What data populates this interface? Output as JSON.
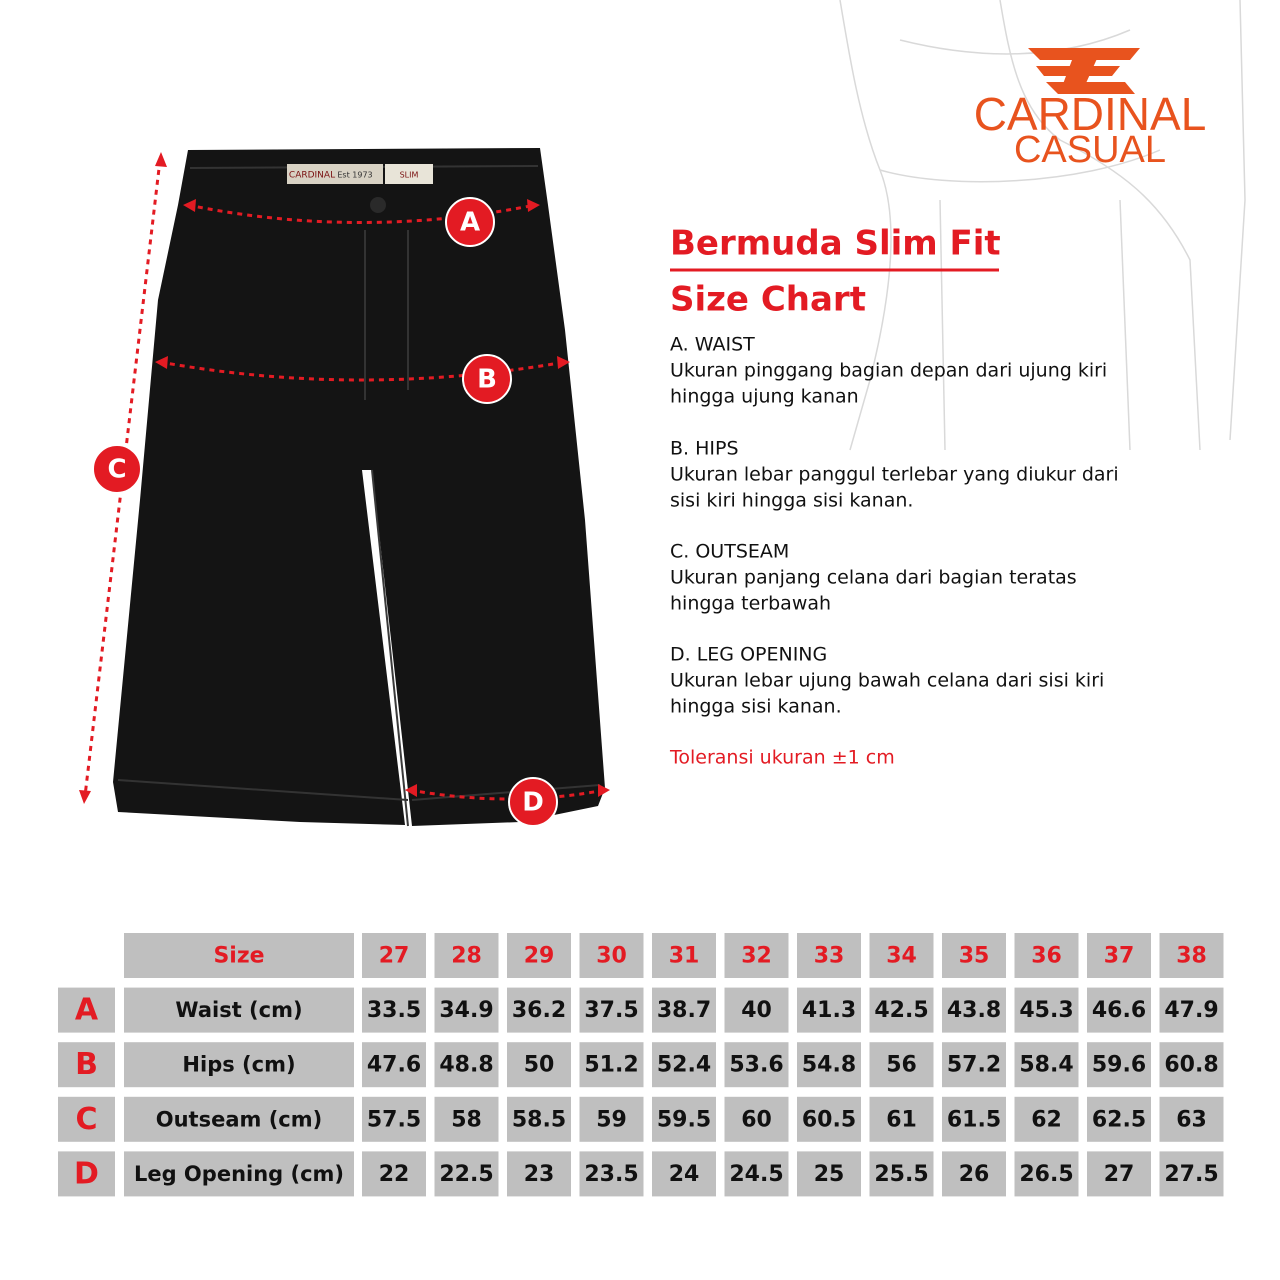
{
  "brand": {
    "line1": "CARDINAL",
    "line2": "CASUAL"
  },
  "tag": {
    "brand": "CARDINAL",
    "est": "Est 1973",
    "fit": "SLIM"
  },
  "title": "Bermuda Slim Fit",
  "subtitle": "Size Chart",
  "measures": [
    {
      "heading": "A. WAIST",
      "lines": [
        "Ukuran pinggang bagian depan dari ujung kiri",
        "hingga ujung kanan"
      ]
    },
    {
      "heading": "B. HIPS",
      "lines": [
        "Ukuran lebar panggul terlebar yang diukur dari",
        "sisi kiri hingga sisi kanan."
      ]
    },
    {
      "heading": "C. OUTSEAM",
      "lines": [
        "Ukuran panjang celana dari bagian teratas",
        "hingga terbawah"
      ]
    },
    {
      "heading": "D. LEG OPENING",
      "lines": [
        "Ukuran lebar ujung bawah celana dari sisi kiri",
        "hingga sisi kanan."
      ]
    }
  ],
  "tolerance": "Toleransi ukuran ±1 cm",
  "table": {
    "header": "Size",
    "sizes": [
      27,
      28,
      29,
      30,
      31,
      32,
      33,
      34,
      35,
      36,
      37,
      38
    ],
    "rows": [
      {
        "letter": "A",
        "label": "Waist (cm)",
        "values": [
          33.5,
          34.9,
          36.2,
          37.5,
          38.7,
          40,
          41.3,
          42.5,
          43.8,
          45.3,
          46.6,
          47.9
        ]
      },
      {
        "letter": "B",
        "label": "Hips (cm)",
        "values": [
          47.6,
          48.8,
          50,
          51.2,
          52.4,
          53.6,
          54.8,
          56,
          57.2,
          58.4,
          59.6,
          60.8
        ]
      },
      {
        "letter": "C",
        "label": "Outseam (cm)",
        "values": [
          57.5,
          58,
          58.5,
          59,
          59.5,
          60,
          60.5,
          61,
          61.5,
          62,
          62.5,
          63
        ]
      },
      {
        "letter": "D",
        "label": "Leg Opening (cm)",
        "values": [
          22,
          22.5,
          23,
          23.5,
          24,
          24.5,
          25,
          25.5,
          26,
          26.5,
          27,
          27.5
        ]
      }
    ]
  }
}
